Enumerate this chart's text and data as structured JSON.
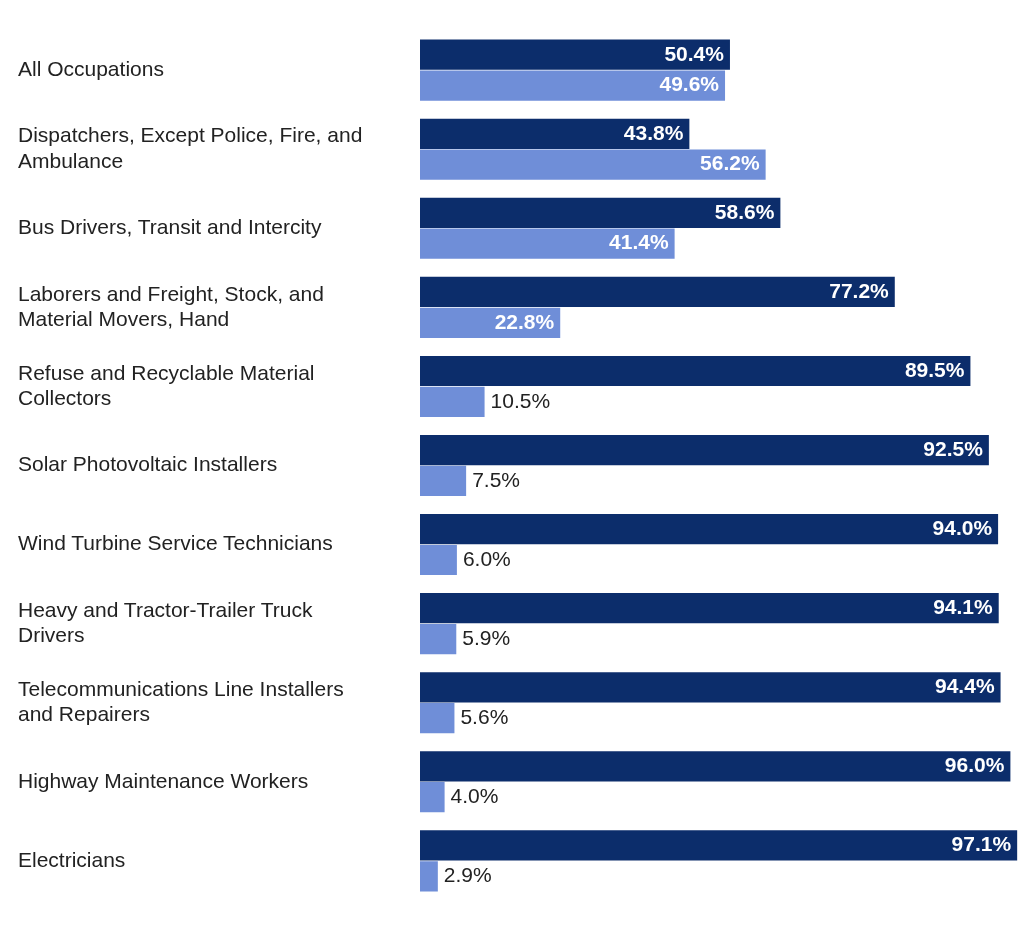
{
  "chart_data": {
    "type": "bar",
    "orientation": "horizontal",
    "grid": false,
    "legend": false,
    "categories": [
      "All Occupations",
      "Dispatchers, Except Police, Fire, and Ambulance",
      "Bus Drivers, Transit and Intercity",
      "Laborers and Freight, Stock, and Material Movers, Hand",
      "Refuse and Recyclable Material Collectors",
      "Solar Photovoltaic Installers",
      "Wind Turbine Service Technicians",
      "Heavy and Tractor-Trailer Truck Drivers",
      "Telecommunications Line Installers and Repairers",
      "Highway Maintenance Workers",
      "Electricians"
    ],
    "series": [
      {
        "color": "#0c2d6b",
        "values": [
          50.4,
          43.8,
          58.6,
          77.2,
          89.5,
          92.5,
          94.0,
          94.1,
          94.4,
          96.0,
          97.1
        ],
        "value_labels": [
          "50.4%",
          "43.8%",
          "58.6%",
          "77.2%",
          "89.5%",
          "92.5%",
          "94.0%",
          "94.1%",
          "94.4%",
          "96.0%",
          "97.1%"
        ]
      },
      {
        "color": "#6f8ed8",
        "values": [
          49.6,
          56.2,
          41.4,
          22.8,
          10.5,
          7.5,
          6.0,
          5.9,
          5.6,
          4.0,
          2.9
        ],
        "value_labels": [
          "49.6%",
          "56.2%",
          "41.4%",
          "22.8%",
          "10.5%",
          "7.5%",
          "6.0%",
          "5.9%",
          "5.6%",
          "4.0%",
          "2.9%"
        ]
      }
    ]
  }
}
